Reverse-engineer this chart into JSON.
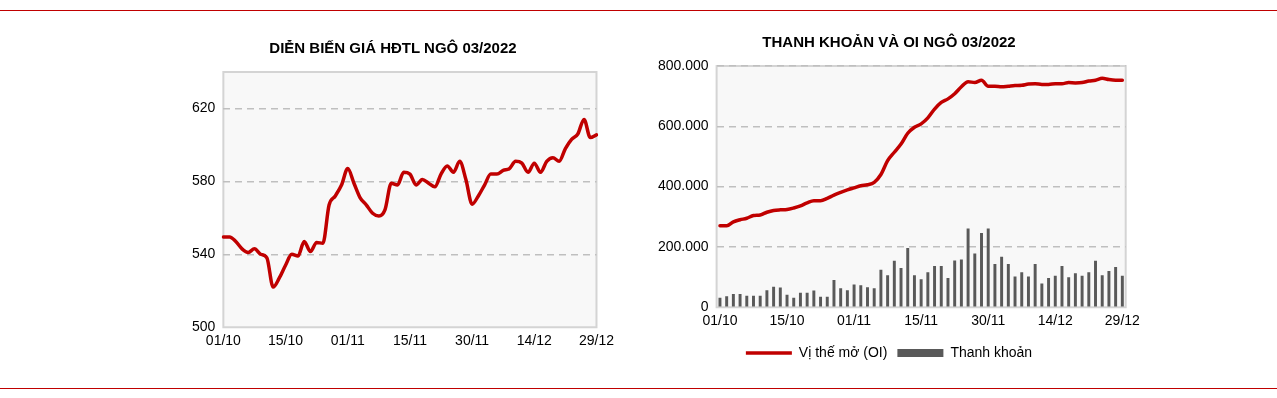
{
  "chart_data": [
    {
      "type": "line",
      "title": "DIỄN BIẾN GIÁ HĐTL NGÔ 03/2022",
      "categories": [
        "01/10",
        null,
        null,
        null,
        null,
        null,
        null,
        null,
        null,
        null,
        "15/10",
        null,
        null,
        null,
        null,
        null,
        null,
        null,
        null,
        null,
        "01/11",
        null,
        null,
        null,
        null,
        null,
        null,
        null,
        null,
        null,
        "15/11",
        null,
        null,
        null,
        null,
        null,
        null,
        null,
        null,
        null,
        "30/11",
        null,
        null,
        null,
        null,
        null,
        null,
        null,
        null,
        null,
        "14/12",
        null,
        null,
        null,
        null,
        null,
        null,
        null,
        null,
        null,
        "29/12"
      ],
      "series": [
        {
          "color": "#c00000",
          "values": [
            549.5,
            549.5,
            547,
            543,
            541,
            543,
            540,
            538,
            522,
            527,
            534,
            540,
            539,
            547,
            541.5,
            546.5,
            546,
            567,
            572,
            578,
            587,
            579,
            571,
            567,
            562.5,
            561,
            564.5,
            579,
            578,
            585,
            584,
            578,
            581,
            579,
            577,
            584,
            588.5,
            585,
            591,
            581,
            567.5,
            572,
            578,
            584,
            584,
            586,
            587,
            591,
            590,
            585,
            590,
            585,
            591,
            593,
            591,
            598,
            603,
            606,
            614,
            604,
            605.5
          ]
        }
      ],
      "ylim": [
        500,
        640
      ],
      "yticks": [
        500,
        540,
        580,
        620
      ],
      "grid": "y",
      "legend": false,
      "marker": "none",
      "line_style": "solid"
    },
    {
      "type": "bar",
      "title": "THANH KHOẢN VÀ OI NGÔ 03/2022",
      "categories": [
        "01/10",
        null,
        null,
        null,
        null,
        null,
        null,
        null,
        null,
        null,
        "15/10",
        null,
        null,
        null,
        null,
        null,
        null,
        null,
        null,
        null,
        "01/11",
        null,
        null,
        null,
        null,
        null,
        null,
        null,
        null,
        null,
        "15/11",
        null,
        null,
        null,
        null,
        null,
        null,
        null,
        null,
        null,
        "30/11",
        null,
        null,
        null,
        null,
        null,
        null,
        null,
        null,
        null,
        "14/12",
        null,
        null,
        null,
        null,
        null,
        null,
        null,
        null,
        null,
        "29/12"
      ],
      "series": [
        {
          "name": "Thanh khoản",
          "type": "bar",
          "color": "#595959",
          "values": [
            31000,
            36000,
            44000,
            44000,
            38000,
            38000,
            38000,
            56000,
            68000,
            65000,
            41000,
            31000,
            48000,
            48000,
            55000,
            35000,
            35000,
            90000,
            63000,
            56000,
            75000,
            73000,
            66000,
            63000,
            124000,
            106000,
            154000,
            130000,
            196000,
            106000,
            93000,
            116000,
            137000,
            137000,
            97000,
            155000,
            158000,
            261000,
            178000,
            246000,
            261000,
            143000,
            167000,
            143000,
            102000,
            116000,
            102000,
            143000,
            79000,
            97000,
            104000,
            137000,
            99000,
            113000,
            104000,
            116000,
            154000,
            106000,
            120000,
            133000,
            104000
          ]
        },
        {
          "name": "Vị thế mở (OI)",
          "type": "line",
          "color": "#c00000",
          "values": [
            270000,
            270000,
            283000,
            290000,
            295000,
            304000,
            306000,
            315000,
            321000,
            323000,
            324000,
            329000,
            336000,
            346000,
            353000,
            353000,
            361000,
            372000,
            381000,
            389000,
            396000,
            403000,
            406000,
            414000,
            440000,
            486000,
            514000,
            541000,
            577000,
            597000,
            608000,
            628000,
            657000,
            679000,
            691000,
            708000,
            731000,
            748000,
            745000,
            753000,
            733000,
            733000,
            731000,
            733000,
            735000,
            736000,
            740000,
            741000,
            739000,
            739000,
            741000,
            741000,
            745000,
            744000,
            745000,
            750000,
            753000,
            759000,
            755000,
            753000,
            753000
          ]
        }
      ],
      "ylim": [
        0,
        800000
      ],
      "yticks": [
        0,
        {
          "value": 200000,
          "label": "200.000"
        },
        {
          "value": 400000,
          "label": "400.000"
        },
        {
          "value": 600000,
          "label": "600.000"
        },
        {
          "value": 800000,
          "label": "800.000"
        }
      ],
      "grid": "y",
      "legend": "bottom",
      "marker": "none",
      "line_style": "solid"
    }
  ]
}
